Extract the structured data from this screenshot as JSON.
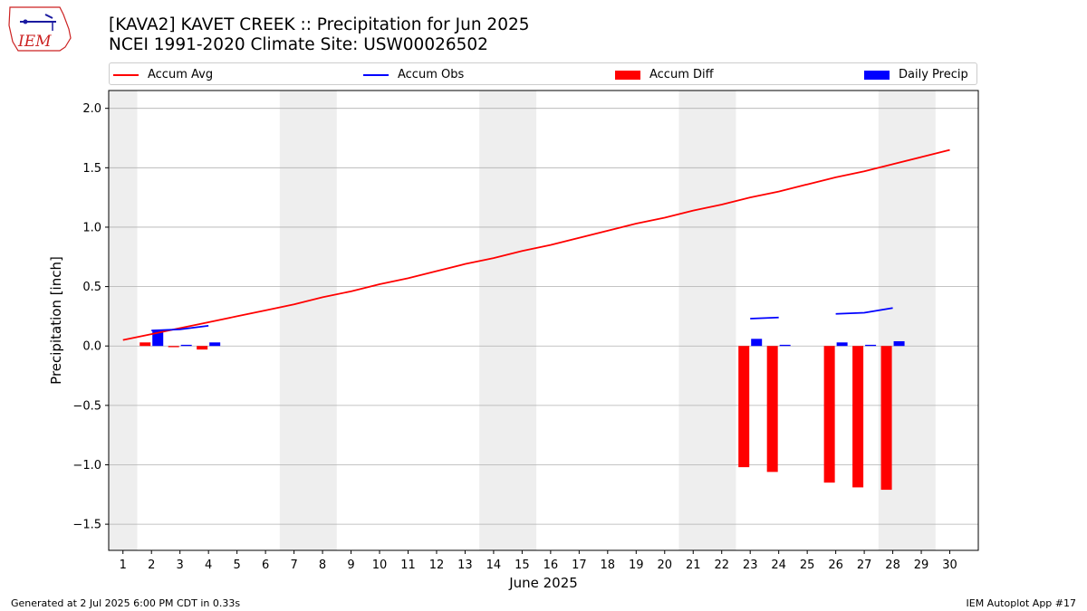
{
  "logo": {
    "text": "IEM",
    "icon": "iem-iowa-logo-icon",
    "color": "#cc2222"
  },
  "header": {
    "title_line1": "[KAVA2] KAVET CREEK :: Precipitation for Jun 2025",
    "title_line2": "NCEI 1991-2020 Climate Site: USW00026502"
  },
  "footer": {
    "generated": "Generated at 2 Jul 2025 6:00 PM CDT in 0.33s",
    "app": "IEM Autoplot App #17"
  },
  "chart_data": {
    "type": "bar",
    "title": "[KAVA2] KAVET CREEK :: Precipitation for Jun 2025",
    "subtitle": "NCEI 1991-2020 Climate Site: USW00026502",
    "xlabel": "June 2025",
    "ylabel": "Precipitation [inch]",
    "xlim": [
      0.5,
      31
    ],
    "ylim": [
      -1.72,
      2.15
    ],
    "x_ticks": [
      1,
      2,
      3,
      4,
      5,
      6,
      7,
      8,
      9,
      10,
      11,
      12,
      13,
      14,
      15,
      16,
      17,
      18,
      19,
      20,
      21,
      22,
      23,
      24,
      25,
      26,
      27,
      28,
      29,
      30
    ],
    "y_ticks": [
      -1.5,
      -1.0,
      -0.5,
      0.0,
      0.5,
      1.0,
      1.5,
      2.0
    ],
    "y_tick_labels": [
      "−1.5",
      "−1.0",
      "−0.5",
      "0.0",
      "0.5",
      "1.0",
      "1.5",
      "2.0"
    ],
    "grid": true,
    "legend_position": "top",
    "weekend_shading": [
      [
        0.5,
        1.5
      ],
      [
        6.5,
        8.5
      ],
      [
        13.5,
        15.5
      ],
      [
        20.5,
        22.5
      ],
      [
        27.5,
        29.5
      ]
    ],
    "series": [
      {
        "name": "Accum Avg",
        "kind": "line",
        "color": "#ff0000",
        "x": [
          1,
          2,
          3,
          4,
          5,
          6,
          7,
          8,
          9,
          10,
          11,
          12,
          13,
          14,
          15,
          16,
          17,
          18,
          19,
          20,
          21,
          22,
          23,
          24,
          25,
          26,
          27,
          28,
          29,
          30
        ],
        "values": [
          0.05,
          0.1,
          0.15,
          0.2,
          0.25,
          0.3,
          0.35,
          0.41,
          0.46,
          0.52,
          0.57,
          0.63,
          0.69,
          0.74,
          0.8,
          0.85,
          0.91,
          0.97,
          1.03,
          1.08,
          1.14,
          1.19,
          1.25,
          1.3,
          1.36,
          1.42,
          1.47,
          1.53,
          1.59,
          1.65
        ]
      },
      {
        "name": "Accum Obs",
        "kind": "line",
        "color": "#0000ff",
        "segments": [
          {
            "x": [
              2,
              3,
              4
            ],
            "values": [
              0.13,
              0.14,
              0.17
            ]
          },
          {
            "x": [
              23,
              24
            ],
            "values": [
              0.23,
              0.24
            ]
          },
          {
            "x": [
              26,
              27,
              28
            ],
            "values": [
              0.27,
              0.28,
              0.32
            ]
          }
        ]
      },
      {
        "name": "Accum Diff",
        "kind": "bar",
        "color": "#ff0000",
        "x": [
          2,
          3,
          4,
          23,
          24,
          26,
          27,
          28
        ],
        "values": [
          0.03,
          -0.01,
          -0.03,
          -1.02,
          -1.06,
          -1.15,
          -1.19,
          -1.21
        ]
      },
      {
        "name": "Daily Precip",
        "kind": "bar",
        "color": "#0000ff",
        "x": [
          2,
          3,
          4,
          23,
          24,
          26,
          27,
          28
        ],
        "values": [
          0.13,
          0.01,
          0.03,
          0.06,
          0.01,
          0.03,
          0.01,
          0.04
        ]
      }
    ]
  }
}
